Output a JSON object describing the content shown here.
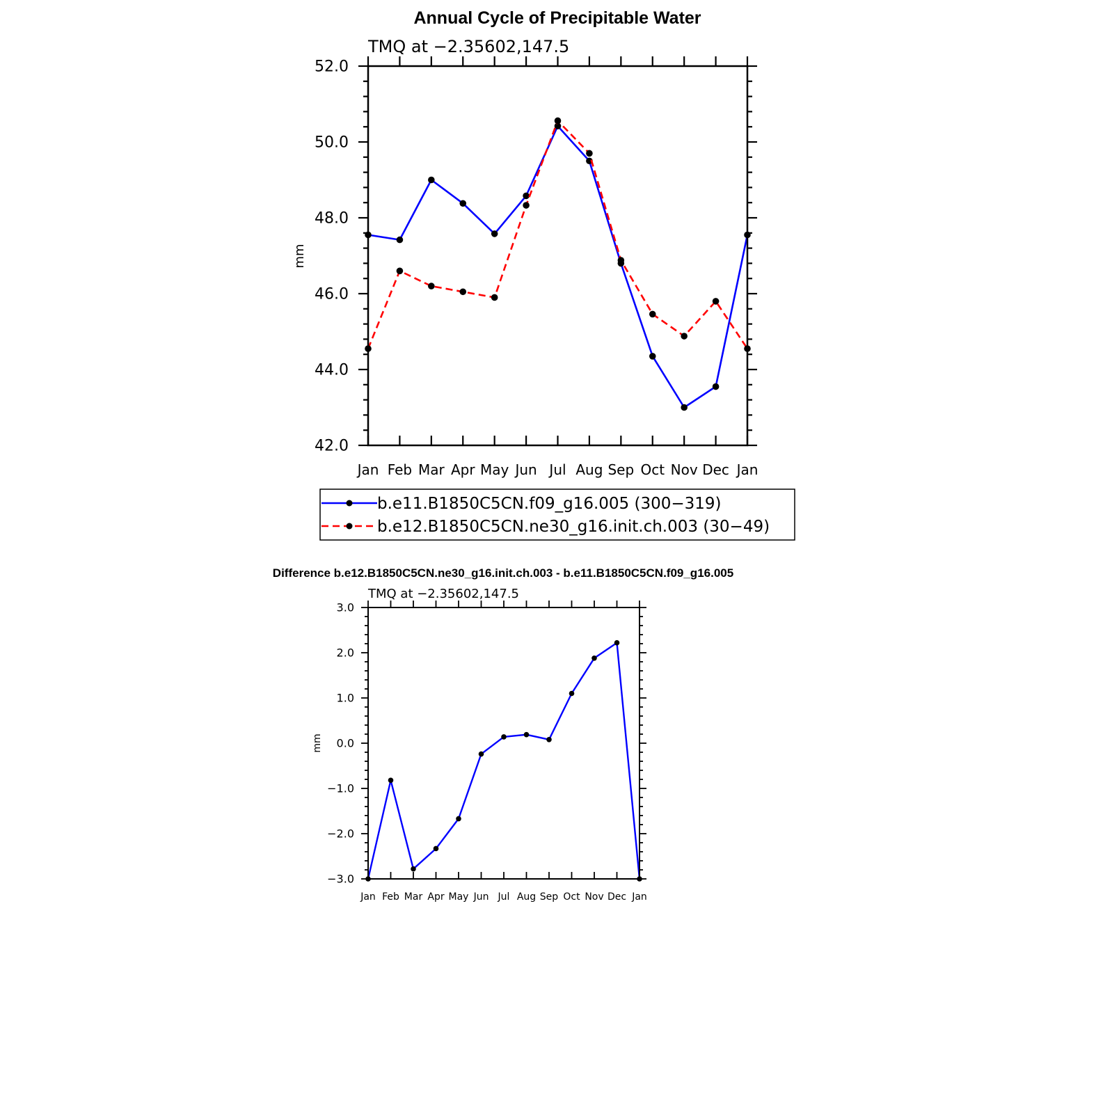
{
  "chart_data": [
    {
      "type": "line",
      "title": "Annual Cycle of Precipitable Water",
      "subtitle": "TMQ at −2.35602,147.5",
      "xlabel": "",
      "ylabel": "mm",
      "categories": [
        "Jan",
        "Feb",
        "Mar",
        "Apr",
        "May",
        "Jun",
        "Jul",
        "Aug",
        "Sep",
        "Oct",
        "Nov",
        "Dec",
        "Jan"
      ],
      "ylim": [
        42.0,
        52.0
      ],
      "y_ticks": [
        "42.0",
        "44.0",
        "46.0",
        "48.0",
        "50.0",
        "52.0"
      ],
      "grid": false,
      "legend": "below",
      "series": [
        {
          "name": "b.e11.B1850C5CN.f09_g16.005 (300−319)",
          "color": "#0000ff",
          "dash": "solid",
          "values": [
            47.55,
            47.42,
            49.0,
            48.38,
            47.58,
            48.58,
            50.42,
            49.5,
            46.8,
            44.35,
            43.0,
            43.55,
            47.55
          ]
        },
        {
          "name": "b.e12.B1850C5CN.ne30_g16.init.ch.003 (30−49)",
          "color": "#ff0000",
          "dash": "dashed",
          "values": [
            44.55,
            46.6,
            46.2,
            46.05,
            45.9,
            48.33,
            50.56,
            49.7,
            46.88,
            45.46,
            44.88,
            45.8,
            44.55
          ]
        }
      ]
    },
    {
      "type": "line",
      "title": "Difference b.e12.B1850C5CN.ne30_g16.init.ch.003 - b.e11.B1850C5CN.f09_g16.005",
      "subtitle": "TMQ at −2.35602,147.5",
      "xlabel": "",
      "ylabel": "mm",
      "categories": [
        "Jan",
        "Feb",
        "Mar",
        "Apr",
        "May",
        "Jun",
        "Jul",
        "Aug",
        "Sep",
        "Oct",
        "Nov",
        "Dec",
        "Jan"
      ],
      "ylim": [
        -3.0,
        3.0
      ],
      "y_ticks": [
        "−3.0",
        "−2.0",
        "−1.0",
        "0.0",
        "1.0",
        "2.0",
        "3.0"
      ],
      "grid": false,
      "series": [
        {
          "color": "#0000ff",
          "dash": "solid",
          "values": [
            -3.0,
            -0.82,
            -2.78,
            -2.33,
            -1.67,
            -0.24,
            0.14,
            0.19,
            0.08,
            1.1,
            1.88,
            2.22,
            -3.0
          ]
        }
      ]
    }
  ]
}
